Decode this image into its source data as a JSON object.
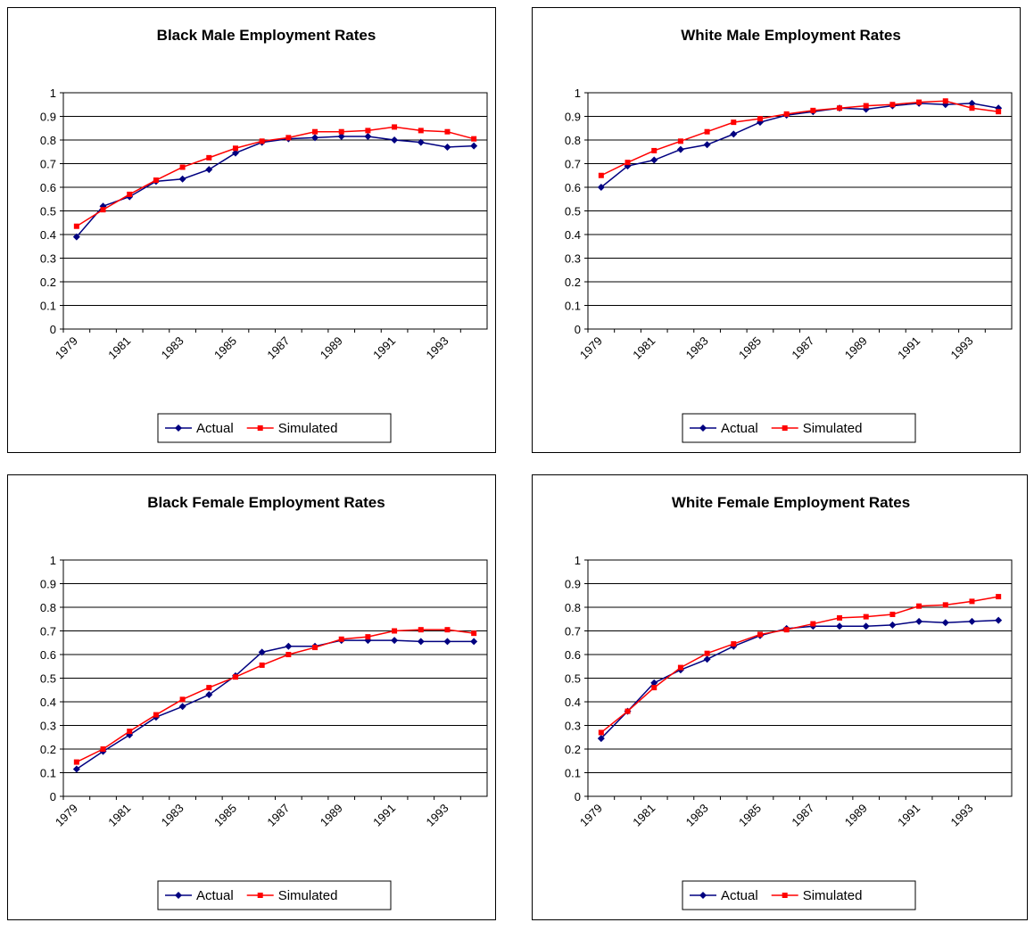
{
  "chart_data": [
    {
      "type": "line",
      "title": "Black Male Employment Rates",
      "categories": [
        "1979",
        null,
        "1981",
        null,
        "1983",
        null,
        "1985",
        null,
        "1987",
        null,
        "1989",
        null,
        "1991",
        null,
        "1993",
        null
      ],
      "series": [
        {
          "name": "Actual",
          "color": "#000080",
          "values": [
            0.39,
            0.52,
            0.56,
            0.625,
            0.635,
            0.675,
            0.745,
            0.79,
            0.805,
            0.81,
            0.815,
            0.815,
            0.8,
            0.79,
            0.77,
            0.775
          ]
        },
        {
          "name": "Simulated",
          "color": "#ff0000",
          "values": [
            0.435,
            0.505,
            0.57,
            0.63,
            0.685,
            0.725,
            0.765,
            0.795,
            0.81,
            0.835,
            0.835,
            0.84,
            0.855,
            0.84,
            0.835,
            0.805
          ]
        }
      ],
      "ylim": [
        0,
        1
      ],
      "yticks": [
        0,
        0.1,
        0.2,
        0.3,
        0.4,
        0.5,
        0.6,
        0.7,
        0.8,
        0.9,
        1
      ],
      "grid": true,
      "legend": "bottom"
    },
    {
      "type": "line",
      "title": "White Male Employment Rates",
      "categories": [
        "1979",
        null,
        "1981",
        null,
        "1983",
        null,
        "1985",
        null,
        "1987",
        null,
        "1989",
        null,
        "1991",
        null,
        "1993",
        null
      ],
      "series": [
        {
          "name": "Actual",
          "color": "#000080",
          "values": [
            0.6,
            0.69,
            0.715,
            0.76,
            0.78,
            0.825,
            0.875,
            0.905,
            0.92,
            0.935,
            0.93,
            0.945,
            0.955,
            0.95,
            0.955,
            0.935
          ]
        },
        {
          "name": "Simulated",
          "color": "#ff0000",
          "values": [
            0.65,
            0.705,
            0.755,
            0.795,
            0.835,
            0.875,
            0.89,
            0.91,
            0.925,
            0.935,
            0.945,
            0.95,
            0.96,
            0.965,
            0.935,
            0.92
          ]
        }
      ],
      "ylim": [
        0,
        1
      ],
      "yticks": [
        0,
        0.1,
        0.2,
        0.3,
        0.4,
        0.5,
        0.6,
        0.7,
        0.8,
        0.9,
        1
      ],
      "grid": true,
      "legend": "bottom"
    },
    {
      "type": "line",
      "title": "Black Female Employment Rates",
      "categories": [
        "1979",
        null,
        "1981",
        null,
        "1983",
        null,
        "1985",
        null,
        "1987",
        null,
        "1989",
        null,
        "1991",
        null,
        "1993",
        null
      ],
      "series": [
        {
          "name": "Actual",
          "color": "#000080",
          "values": [
            0.115,
            0.19,
            0.26,
            0.335,
            0.38,
            0.43,
            0.51,
            0.61,
            0.635,
            0.635,
            0.66,
            0.66,
            0.66,
            0.655,
            0.655,
            0.655
          ]
        },
        {
          "name": "Simulated",
          "color": "#ff0000",
          "values": [
            0.145,
            0.2,
            0.275,
            0.345,
            0.41,
            0.46,
            0.505,
            0.555,
            0.6,
            0.63,
            0.665,
            0.675,
            0.7,
            0.705,
            0.705,
            0.69
          ]
        }
      ],
      "ylim": [
        0,
        1
      ],
      "yticks": [
        0,
        0.1,
        0.2,
        0.3,
        0.4,
        0.5,
        0.6,
        0.7,
        0.8,
        0.9,
        1
      ],
      "grid": true,
      "legend": "bottom"
    },
    {
      "type": "line",
      "title": "White Female Employment Rates",
      "categories": [
        "1979",
        null,
        "1981",
        null,
        "1983",
        null,
        "1985",
        null,
        "1987",
        null,
        "1989",
        null,
        "1991",
        null,
        "1993",
        null
      ],
      "series": [
        {
          "name": "Actual",
          "color": "#000080",
          "values": [
            0.245,
            0.36,
            0.48,
            0.535,
            0.58,
            0.635,
            0.68,
            0.71,
            0.72,
            0.72,
            0.72,
            0.725,
            0.74,
            0.735,
            0.74,
            0.745
          ]
        },
        {
          "name": "Simulated",
          "color": "#ff0000",
          "values": [
            0.27,
            0.36,
            0.46,
            0.545,
            0.605,
            0.645,
            0.685,
            0.705,
            0.73,
            0.755,
            0.76,
            0.77,
            0.805,
            0.81,
            0.825,
            0.845
          ]
        }
      ],
      "ylim": [
        0,
        1
      ],
      "yticks": [
        0,
        0.1,
        0.2,
        0.3,
        0.4,
        0.5,
        0.6,
        0.7,
        0.8,
        0.9,
        1
      ],
      "grid": true,
      "legend": "bottom"
    }
  ]
}
